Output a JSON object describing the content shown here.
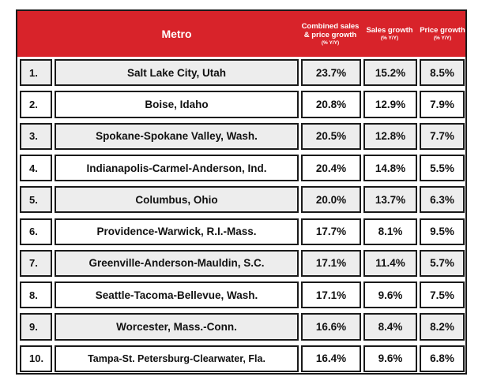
{
  "header": {
    "metro": "Metro",
    "combined": "Combined sales & price growth",
    "combined_unit": "(% Y/Y)",
    "sales": "Sales growth",
    "sales_unit": "(% Y/Y)",
    "price": "Price growth",
    "price_unit": "(% Y/Y)"
  },
  "rows": [
    {
      "rank": "1.",
      "metro": "Salt Lake City, Utah",
      "combined": "23.7%",
      "sales": "15.2%",
      "price": "8.5%"
    },
    {
      "rank": "2.",
      "metro": "Boise, Idaho",
      "combined": "20.8%",
      "sales": "12.9%",
      "price": "7.9%"
    },
    {
      "rank": "3.",
      "metro": "Spokane-Spokane Valley, Wash.",
      "combined": "20.5%",
      "sales": "12.8%",
      "price": "7.7%"
    },
    {
      "rank": "4.",
      "metro": "Indianapolis-Carmel-Anderson, Ind.",
      "combined": "20.4%",
      "sales": "14.8%",
      "price": "5.5%"
    },
    {
      "rank": "5.",
      "metro": "Columbus, Ohio",
      "combined": "20.0%",
      "sales": "13.7%",
      "price": "6.3%"
    },
    {
      "rank": "6.",
      "metro": "Providence-Warwick, R.I.-Mass.",
      "combined": "17.7%",
      "sales": "8.1%",
      "price": "9.5%"
    },
    {
      "rank": "7.",
      "metro": "Greenville-Anderson-Mauldin, S.C.",
      "combined": "17.1%",
      "sales": "11.4%",
      "price": "5.7%"
    },
    {
      "rank": "8.",
      "metro": "Seattle-Tacoma-Bellevue, Wash.",
      "combined": "17.1%",
      "sales": "9.6%",
      "price": "7.5%"
    },
    {
      "rank": "9.",
      "metro": "Worcester, Mass.-Conn.",
      "combined": "16.6%",
      "sales": "8.4%",
      "price": "8.2%"
    },
    {
      "rank": "10.",
      "metro": "Tampa-St. Petersburg-Clearwater, Fla.",
      "combined": "16.4%",
      "sales": "9.6%",
      "price": "6.8%"
    }
  ]
}
